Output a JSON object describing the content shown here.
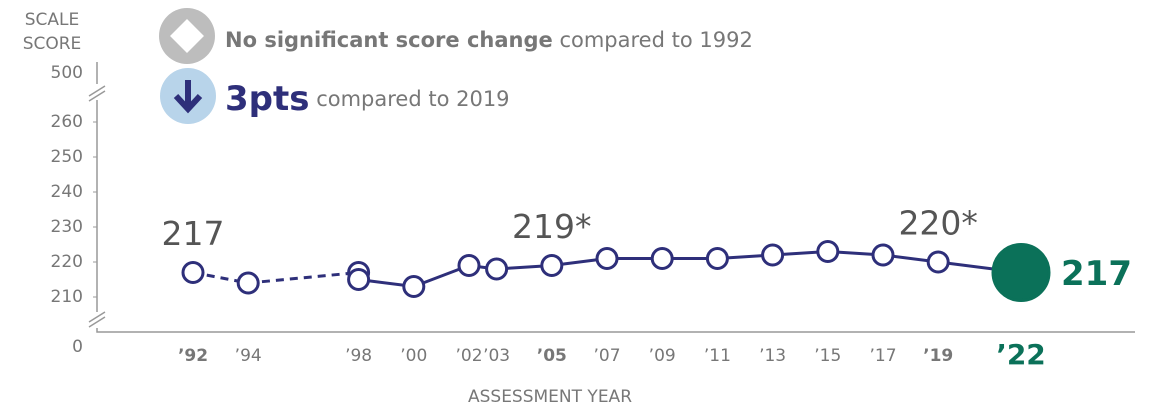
{
  "chart_data": {
    "type": "line",
    "ylabel": [
      "SCALE",
      "SCORE"
    ],
    "xlabel": "ASSESSMENT YEAR",
    "annotations": [
      {
        "bold": "No significant score change",
        "text": "compared to 1992"
      },
      {
        "bold": "3pts",
        "text": "compared to 2019"
      }
    ],
    "x": [
      1992,
      1994,
      1998,
      2000,
      2002,
      2003,
      2005,
      2007,
      2009,
      2011,
      2013,
      2015,
      2017,
      2019,
      2022
    ],
    "xticks": [
      {
        "value": 1992,
        "label": "’92"
      },
      {
        "value": 1994,
        "label": "’94"
      },
      {
        "value": 1998,
        "label": "’98"
      },
      {
        "value": 2000,
        "label": "’00"
      },
      {
        "value": 2002,
        "label": "’02"
      },
      {
        "value": 2003,
        "label": "’03"
      },
      {
        "value": 2005,
        "label": "’05"
      },
      {
        "value": 2007,
        "label": "’07"
      },
      {
        "value": 2009,
        "label": "’09"
      },
      {
        "value": 2011,
        "label": "’11"
      },
      {
        "value": 2013,
        "label": "’13"
      },
      {
        "value": 2015,
        "label": "’15"
      },
      {
        "value": 2017,
        "label": "’17"
      },
      {
        "value": 2019,
        "label": "’19"
      },
      {
        "value": 2022,
        "label": "’22"
      }
    ],
    "series": [
      {
        "color": "#2e2f7a",
        "dashed": true,
        "values": [
          217,
          214,
          217,
          null,
          null,
          null,
          null,
          null,
          null,
          null,
          null,
          null,
          null,
          null,
          null
        ],
        "value_labels": [
          "217",
          null,
          null,
          null,
          null,
          null,
          null,
          null,
          null,
          null,
          null,
          null,
          null,
          null,
          null
        ]
      },
      {
        "color": "#2e2f7a",
        "dashed": false,
        "values": [
          null,
          null,
          215,
          213,
          219,
          218,
          219,
          221,
          221,
          221,
          222,
          223,
          222,
          220,
          217
        ],
        "value_labels": [
          null,
          null,
          null,
          null,
          null,
          null,
          "219*",
          null,
          null,
          null,
          null,
          null,
          null,
          "220*",
          "217"
        ]
      }
    ],
    "final_color": "#0b7159",
    "ylim": [
      210,
      260
    ],
    "yticks": [
      210,
      220,
      230,
      240,
      250,
      260
    ],
    "ybreak_ticks": [
      500,
      0
    ]
  }
}
